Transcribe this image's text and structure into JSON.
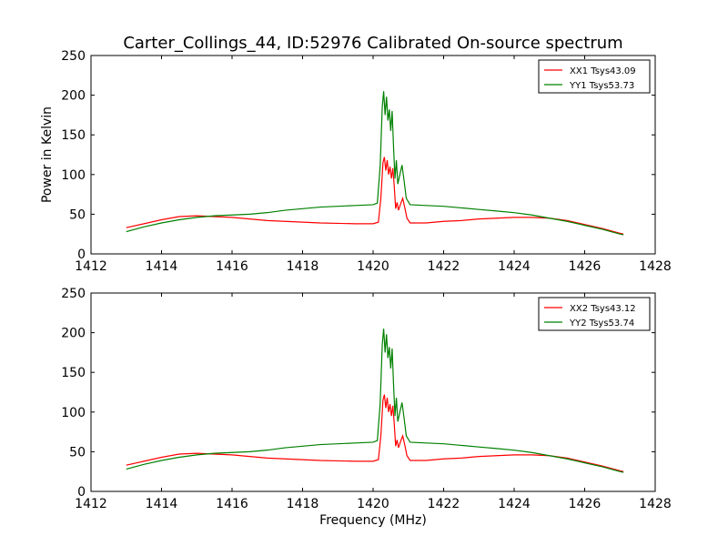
{
  "chart_data": [
    {
      "type": "line",
      "title": "Carter_Collings_44, ID:52976 Calibrated On-source spectrum",
      "xlabel": "",
      "ylabel": "Power in Kelvin",
      "xlim": [
        1412,
        1428
      ],
      "ylim": [
        0,
        250
      ],
      "xticks": [
        1412,
        1414,
        1416,
        1418,
        1420,
        1422,
        1424,
        1426,
        1428
      ],
      "yticks": [
        0,
        50,
        100,
        150,
        200,
        250
      ],
      "grid": false,
      "legend": "top-right",
      "series": [
        {
          "name": "XX1 Tsys43.09",
          "color": "#ff0000",
          "points": [
            [
              1413.0,
              33
            ],
            [
              1413.5,
              38
            ],
            [
              1414.0,
              43
            ],
            [
              1414.5,
              47
            ],
            [
              1415.0,
              48
            ],
            [
              1415.5,
              47
            ],
            [
              1416.0,
              46
            ],
            [
              1416.5,
              44
            ],
            [
              1417.0,
              42
            ],
            [
              1417.5,
              41
            ],
            [
              1418.0,
              40
            ],
            [
              1418.5,
              39
            ],
            [
              1419.0,
              38.5
            ],
            [
              1419.5,
              38
            ],
            [
              1420.0,
              38
            ],
            [
              1420.15,
              40
            ],
            [
              1420.22,
              70
            ],
            [
              1420.28,
              115
            ],
            [
              1420.32,
              122
            ],
            [
              1420.36,
              105
            ],
            [
              1420.4,
              118
            ],
            [
              1420.44,
              100
            ],
            [
              1420.48,
              110
            ],
            [
              1420.52,
              95
            ],
            [
              1420.56,
              108
            ],
            [
              1420.6,
              85
            ],
            [
              1420.64,
              57
            ],
            [
              1420.68,
              65
            ],
            [
              1420.72,
              55
            ],
            [
              1420.78,
              63
            ],
            [
              1420.84,
              70
            ],
            [
              1420.9,
              58
            ],
            [
              1420.96,
              45
            ],
            [
              1421.05,
              39
            ],
            [
              1421.5,
              39
            ],
            [
              1422.0,
              41
            ],
            [
              1422.5,
              42
            ],
            [
              1423.0,
              44
            ],
            [
              1423.5,
              45
            ],
            [
              1424.0,
              46
            ],
            [
              1424.5,
              46
            ],
            [
              1425.0,
              45
            ],
            [
              1425.5,
              42
            ],
            [
              1426.0,
              37
            ],
            [
              1426.5,
              32
            ],
            [
              1427.0,
              26
            ],
            [
              1427.1,
              25
            ]
          ]
        },
        {
          "name": "YY1 Tsys53.73",
          "color": "#008000",
          "points": [
            [
              1413.0,
              28
            ],
            [
              1413.5,
              34
            ],
            [
              1414.0,
              39
            ],
            [
              1414.5,
              43
            ],
            [
              1415.0,
              46
            ],
            [
              1415.5,
              48
            ],
            [
              1416.0,
              49
            ],
            [
              1416.5,
              50
            ],
            [
              1417.0,
              52
            ],
            [
              1417.5,
              55
            ],
            [
              1418.0,
              57
            ],
            [
              1418.5,
              59
            ],
            [
              1419.0,
              60
            ],
            [
              1419.5,
              61
            ],
            [
              1420.0,
              62
            ],
            [
              1420.12,
              64
            ],
            [
              1420.2,
              110
            ],
            [
              1420.26,
              185
            ],
            [
              1420.3,
              205
            ],
            [
              1420.34,
              175
            ],
            [
              1420.38,
              198
            ],
            [
              1420.42,
              168
            ],
            [
              1420.46,
              182
            ],
            [
              1420.5,
              155
            ],
            [
              1420.54,
              180
            ],
            [
              1420.58,
              135
            ],
            [
              1420.62,
              95
            ],
            [
              1420.66,
              118
            ],
            [
              1420.7,
              88
            ],
            [
              1420.76,
              100
            ],
            [
              1420.82,
              112
            ],
            [
              1420.88,
              92
            ],
            [
              1420.94,
              70
            ],
            [
              1421.05,
              62
            ],
            [
              1421.5,
              61
            ],
            [
              1422.0,
              60
            ],
            [
              1422.5,
              58
            ],
            [
              1423.0,
              56
            ],
            [
              1423.5,
              54
            ],
            [
              1424.0,
              52
            ],
            [
              1424.5,
              49
            ],
            [
              1425.0,
              45
            ],
            [
              1425.5,
              41
            ],
            [
              1426.0,
              36
            ],
            [
              1426.5,
              31
            ],
            [
              1427.0,
              25
            ],
            [
              1427.1,
              24
            ]
          ]
        }
      ]
    },
    {
      "type": "line",
      "title": "",
      "xlabel": "Frequency (MHz)",
      "ylabel": "",
      "xlim": [
        1412,
        1428
      ],
      "ylim": [
        0,
        250
      ],
      "xticks": [
        1412,
        1414,
        1416,
        1418,
        1420,
        1422,
        1424,
        1426,
        1428
      ],
      "yticks": [
        0,
        50,
        100,
        150,
        200,
        250
      ],
      "grid": false,
      "legend": "top-right",
      "series": [
        {
          "name": "XX2 Tsys43.12",
          "color": "#ff0000",
          "points": [
            [
              1413.0,
              33
            ],
            [
              1413.5,
              38
            ],
            [
              1414.0,
              43
            ],
            [
              1414.5,
              47
            ],
            [
              1415.0,
              48
            ],
            [
              1415.5,
              47
            ],
            [
              1416.0,
              46
            ],
            [
              1416.5,
              44
            ],
            [
              1417.0,
              42
            ],
            [
              1417.5,
              41
            ],
            [
              1418.0,
              40
            ],
            [
              1418.5,
              39
            ],
            [
              1419.0,
              38.5
            ],
            [
              1419.5,
              38
            ],
            [
              1420.0,
              38
            ],
            [
              1420.15,
              40
            ],
            [
              1420.22,
              70
            ],
            [
              1420.28,
              115
            ],
            [
              1420.32,
              122
            ],
            [
              1420.36,
              105
            ],
            [
              1420.4,
              118
            ],
            [
              1420.44,
              100
            ],
            [
              1420.48,
              110
            ],
            [
              1420.52,
              95
            ],
            [
              1420.56,
              108
            ],
            [
              1420.6,
              85
            ],
            [
              1420.64,
              57
            ],
            [
              1420.68,
              65
            ],
            [
              1420.72,
              55
            ],
            [
              1420.78,
              63
            ],
            [
              1420.84,
              70
            ],
            [
              1420.9,
              58
            ],
            [
              1420.96,
              45
            ],
            [
              1421.05,
              39
            ],
            [
              1421.5,
              39
            ],
            [
              1422.0,
              41
            ],
            [
              1422.5,
              42
            ],
            [
              1423.0,
              44
            ],
            [
              1423.5,
              45
            ],
            [
              1424.0,
              46
            ],
            [
              1424.5,
              46
            ],
            [
              1425.0,
              45
            ],
            [
              1425.5,
              42
            ],
            [
              1426.0,
              37
            ],
            [
              1426.5,
              32
            ],
            [
              1427.0,
              26
            ],
            [
              1427.1,
              25
            ]
          ]
        },
        {
          "name": "YY2 Tsys53.74",
          "color": "#008000",
          "points": [
            [
              1413.0,
              28
            ],
            [
              1413.5,
              34
            ],
            [
              1414.0,
              39
            ],
            [
              1414.5,
              43
            ],
            [
              1415.0,
              46
            ],
            [
              1415.5,
              48
            ],
            [
              1416.0,
              49
            ],
            [
              1416.5,
              50
            ],
            [
              1417.0,
              52
            ],
            [
              1417.5,
              55
            ],
            [
              1418.0,
              57
            ],
            [
              1418.5,
              59
            ],
            [
              1419.0,
              60
            ],
            [
              1419.5,
              61
            ],
            [
              1420.0,
              62
            ],
            [
              1420.12,
              64
            ],
            [
              1420.2,
              110
            ],
            [
              1420.26,
              185
            ],
            [
              1420.3,
              205
            ],
            [
              1420.34,
              175
            ],
            [
              1420.38,
              198
            ],
            [
              1420.42,
              168
            ],
            [
              1420.46,
              182
            ],
            [
              1420.5,
              155
            ],
            [
              1420.54,
              180
            ],
            [
              1420.58,
              135
            ],
            [
              1420.62,
              95
            ],
            [
              1420.66,
              118
            ],
            [
              1420.7,
              88
            ],
            [
              1420.76,
              100
            ],
            [
              1420.82,
              112
            ],
            [
              1420.88,
              92
            ],
            [
              1420.94,
              70
            ],
            [
              1421.05,
              62
            ],
            [
              1421.5,
              61
            ],
            [
              1422.0,
              60
            ],
            [
              1422.5,
              58
            ],
            [
              1423.0,
              56
            ],
            [
              1423.5,
              54
            ],
            [
              1424.0,
              52
            ],
            [
              1424.5,
              49
            ],
            [
              1425.0,
              45
            ],
            [
              1425.5,
              41
            ],
            [
              1426.0,
              36
            ],
            [
              1426.5,
              31
            ],
            [
              1427.0,
              25
            ],
            [
              1427.1,
              24
            ]
          ]
        }
      ]
    }
  ]
}
